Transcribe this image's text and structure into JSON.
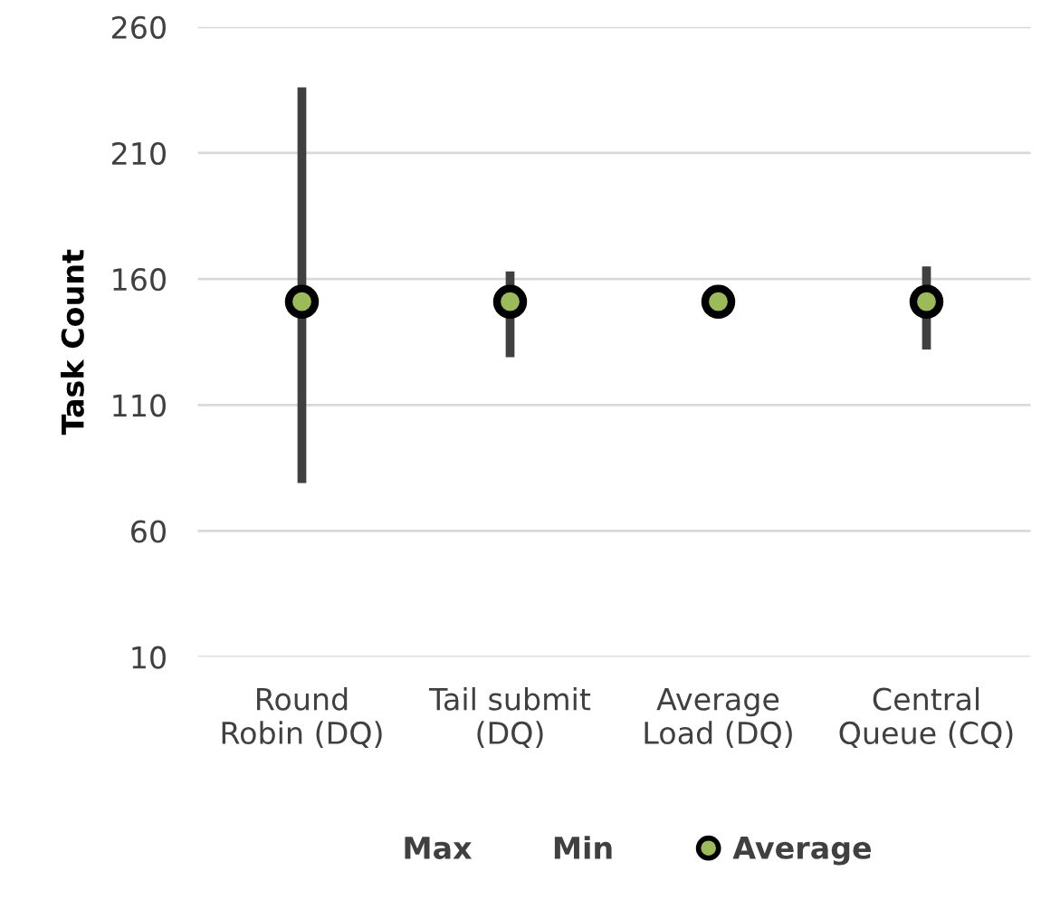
{
  "chart_data": {
    "type": "scatter",
    "ylabel": "Task Count",
    "categories": [
      "Round\nRobin (DQ)",
      "Tail submit\n(DQ)",
      "Average\nLoad (DQ)",
      "Central\nQueue (CQ)"
    ],
    "series": [
      {
        "name": "Average",
        "color": "#9bbb59",
        "values": [
          151,
          151,
          151,
          151
        ],
        "errors": [
          [
            79,
            236
          ],
          [
            129,
            163
          ],
          [
            149,
            153
          ],
          [
            132,
            165
          ]
        ]
      }
    ],
    "annotations": [
      "Max",
      "Min"
    ],
    "ylim": [
      10,
      260
    ],
    "yticks": [
      10,
      60,
      110,
      160,
      210,
      260
    ],
    "grid": "y",
    "legend": "bottom",
    "marker": "circle"
  }
}
